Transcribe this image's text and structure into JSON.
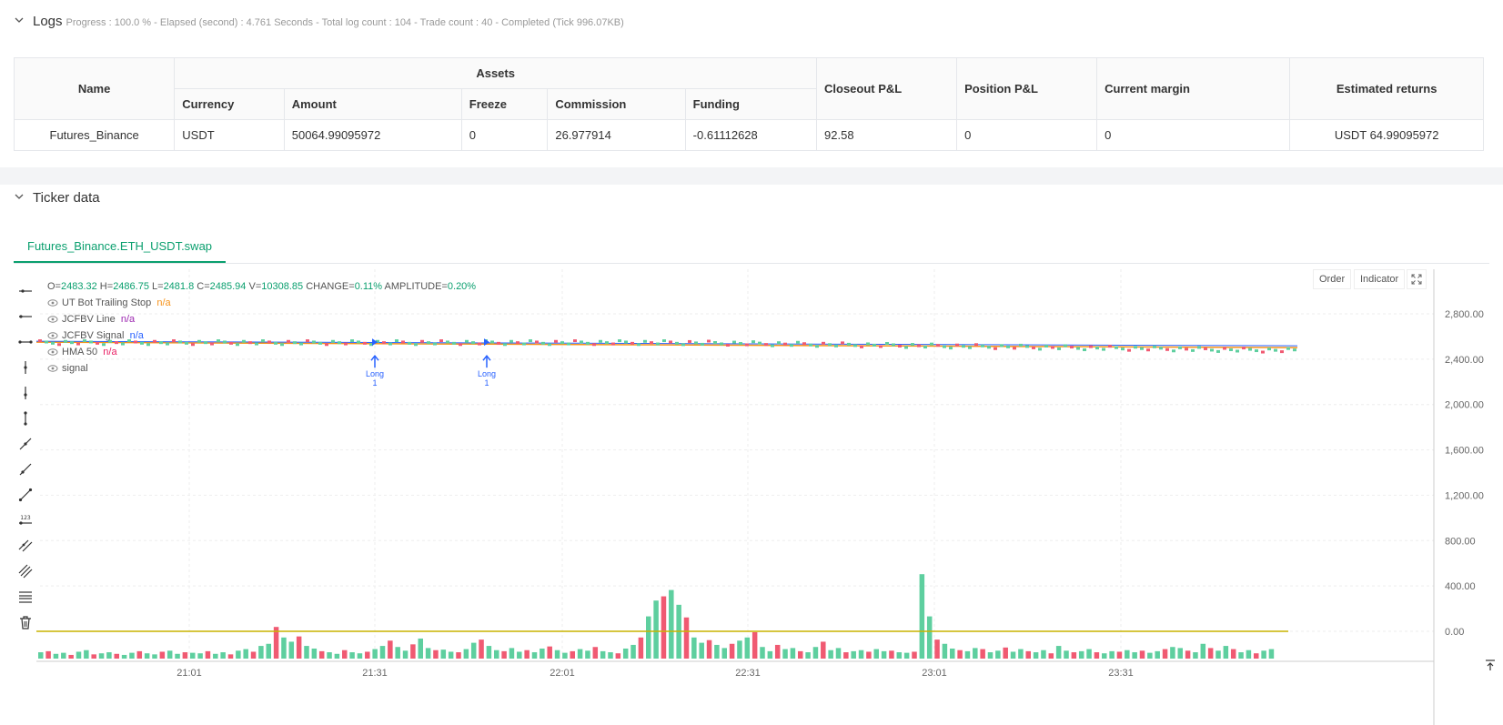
{
  "logs": {
    "title": "Logs",
    "meta": "Progress : 100.0 % - Elapsed (second) : 4.761  Seconds - Total log count : 104 - Trade count : 40 - Completed (Tick 996.07KB)"
  },
  "table": {
    "headers": {
      "name": "Name",
      "assets": "Assets",
      "currency": "Currency",
      "amount": "Amount",
      "freeze": "Freeze",
      "commission": "Commission",
      "funding": "Funding",
      "closeout": "Closeout P&L",
      "position": "Position P&L",
      "margin": "Current margin",
      "returns": "Estimated returns"
    },
    "row": {
      "name": "Futures_Binance",
      "currency": "USDT",
      "amount": "50064.99095972",
      "freeze": "0",
      "commission": "26.977914",
      "funding": "-0.61112628",
      "closeout": "92.58",
      "position": "0",
      "margin": "0",
      "returns": "USDT 64.99095972"
    }
  },
  "ticker": {
    "title": "Ticker data",
    "tab": "Futures_Binance.ETH_USDT.swap"
  },
  "buttons": {
    "order": "Order",
    "indicator": "Indicator"
  },
  "legend": {
    "ohlc": {
      "o_label": "O=",
      "o": "2483.32",
      "h_label": " H=",
      "h": "2486.75",
      "l_label": " L=",
      "l": "2481.8",
      "c_label": " C=",
      "c": "2485.94",
      "v_label": " V=",
      "v": "10308.85",
      "change_label": " CHANGE=",
      "change": "0.11%",
      "amp_label": " AMPLITUDE=",
      "amp": "0.20%"
    },
    "series": [
      {
        "name": "UT Bot Trailing Stop",
        "value": "n/a",
        "color": "#f7931a"
      },
      {
        "name": "JCFBV Line",
        "value": "n/a",
        "color": "#9c27b0"
      },
      {
        "name": "JCFBV Signal",
        "value": "n/a",
        "color": "#2962ff"
      },
      {
        "name": "HMA 50",
        "value": "n/a",
        "color": "#e91e63"
      },
      {
        "name": "signal",
        "value": "",
        "color": "#555555"
      }
    ]
  },
  "chart_data": {
    "type": "candlestick",
    "price_axis": {
      "ticks": [
        "2,800.00",
        "2,400.00",
        "2,000.00",
        "1,600.00",
        "1,200.00",
        "800.00",
        "400.00",
        "0.00"
      ],
      "values": [
        2800,
        2400,
        2000,
        1600,
        1200,
        800,
        400,
        0
      ]
    },
    "time_axis": [
      "21:01",
      "21:31",
      "22:01",
      "22:31",
      "23:01",
      "23:31"
    ],
    "price_level": 2550,
    "signals": [
      {
        "label": "Long",
        "qty": "1",
        "time": "21:31"
      },
      {
        "label": "Long",
        "qty": "1",
        "time": "21:48"
      }
    ],
    "volume": [
      12,
      14,
      9,
      11,
      7,
      13,
      16,
      8,
      10,
      12,
      9,
      7,
      11,
      14,
      10,
      8,
      13,
      15,
      9,
      12,
      11,
      10,
      14,
      9,
      12,
      8,
      15,
      18,
      13,
      24,
      28,
      60,
      40,
      32,
      42,
      24,
      19,
      14,
      12,
      9,
      16,
      12,
      10,
      13,
      18,
      24,
      34,
      22,
      15,
      27,
      38,
      20,
      16,
      17,
      13,
      12,
      18,
      30,
      36,
      24,
      16,
      14,
      20,
      13,
      16,
      12,
      19,
      23,
      16,
      11,
      14,
      18,
      15,
      22,
      14,
      12,
      10,
      19,
      26,
      40,
      80,
      110,
      118,
      130,
      102,
      78,
      40,
      30,
      35,
      26,
      20,
      28,
      34,
      40,
      50,
      22,
      14,
      26,
      18,
      20,
      14,
      12,
      22,
      32,
      16,
      20,
      12,
      14,
      16,
      13,
      18,
      14,
      15,
      12,
      11,
      13,
      160,
      80,
      36,
      28,
      19,
      16,
      14,
      20,
      18,
      12,
      15,
      21,
      13,
      18,
      14,
      12,
      16,
      10,
      24,
      15,
      12,
      14,
      18,
      12,
      10,
      14,
      13,
      16,
      12,
      15,
      11,
      14,
      18,
      22,
      20,
      15,
      12,
      28,
      20,
      15,
      24,
      18,
      12,
      16,
      10,
      15,
      18
    ],
    "volume_colors": "alternating-green-red",
    "volume_ma": 0
  }
}
